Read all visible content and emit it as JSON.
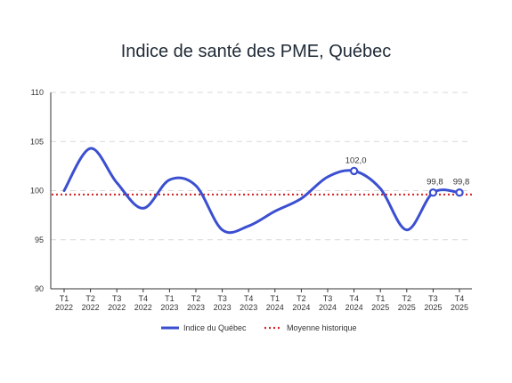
{
  "chart_data": {
    "type": "line",
    "title": "Indice de santé des PME, Québec",
    "xlabel": "",
    "ylabel": "",
    "categories": [
      [
        "T1",
        "2022"
      ],
      [
        "T2",
        "2022"
      ],
      [
        "T3",
        "2022"
      ],
      [
        "T4",
        "2022"
      ],
      [
        "T1",
        "2023"
      ],
      [
        "T2",
        "2023"
      ],
      [
        "T3",
        "2023"
      ],
      [
        "T4",
        "2023"
      ],
      [
        "T1",
        "2024"
      ],
      [
        "T2",
        "2024"
      ],
      [
        "T3",
        "2024"
      ],
      [
        "T4",
        "2024"
      ],
      [
        "T1",
        "2025"
      ],
      [
        "T2",
        "2025"
      ],
      [
        "T3",
        "2025"
      ],
      [
        "T4",
        "2025"
      ]
    ],
    "ylim": [
      90,
      110
    ],
    "yticks": [
      90,
      95,
      100,
      105,
      110
    ],
    "grid": "horizontal dashed",
    "legend_position": "bottom",
    "series": [
      {
        "name": "Indice du Québec",
        "color": "#3b4fd1",
        "style": "smooth line",
        "values": [
          100.0,
          104.3,
          100.8,
          98.2,
          101.1,
          100.5,
          96.0,
          96.4,
          97.9,
          99.2,
          101.4,
          102.0,
          100.2,
          96.0,
          99.8,
          99.8
        ]
      },
      {
        "name": "Moyenne historique",
        "color": "#d62828",
        "style": "dotted line",
        "value": 99.6
      }
    ],
    "annotations": [
      {
        "index": 11,
        "label": "102,0"
      },
      {
        "index": 14,
        "label": "99,8"
      },
      {
        "index": 15,
        "label": "99,8"
      }
    ]
  }
}
